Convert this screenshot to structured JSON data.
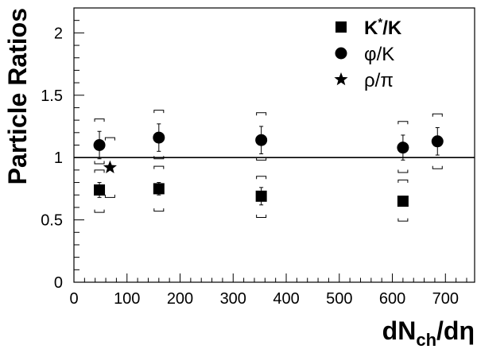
{
  "chart_data": {
    "type": "scatter",
    "xlabel": {
      "main": "dN",
      "sub": "ch",
      "tail": "/dη"
    },
    "ylabel": "Particle Ratios",
    "xlim": [
      0,
      755
    ],
    "ylim": [
      0,
      2.2
    ],
    "xticks": [
      0,
      100,
      200,
      300,
      400,
      500,
      600,
      700
    ],
    "yticks": [
      0,
      0.5,
      1,
      1.5,
      2
    ],
    "ytick_labels": [
      "0",
      "0.5",
      "1",
      "1.5",
      "2"
    ],
    "reference_line": 1.0,
    "legend_placement": "top-right",
    "series": [
      {
        "name": "K*/K",
        "label_main": "K",
        "label_sup": "*",
        "label_tail": "/K",
        "marker": "square",
        "points": [
          {
            "x": 48,
            "y": 0.74,
            "stat": 0.06,
            "sys_lo": 0.56,
            "sys_hi": 0.9
          },
          {
            "x": 160,
            "y": 0.75,
            "stat": 0.05,
            "sys_lo": 0.57,
            "sys_hi": 0.93
          },
          {
            "x": 353,
            "y": 0.69,
            "stat": 0.07,
            "sys_lo": 0.52,
            "sys_hi": 0.85
          },
          {
            "x": 620,
            "y": 0.65,
            "stat": 0.04,
            "sys_lo": 0.49,
            "sys_hi": 0.82
          }
        ]
      },
      {
        "name": "φ/K",
        "label_main": "φ/K",
        "marker": "circle",
        "points": [
          {
            "x": 48,
            "y": 1.1,
            "stat": 0.11,
            "sys_lo": 0.95,
            "sys_hi": 1.31
          },
          {
            "x": 160,
            "y": 1.16,
            "stat": 0.11,
            "sys_lo": 0.99,
            "sys_hi": 1.38
          },
          {
            "x": 353,
            "y": 1.14,
            "stat": 0.11,
            "sys_lo": 0.98,
            "sys_hi": 1.36
          },
          {
            "x": 620,
            "y": 1.08,
            "stat": 0.1,
            "sys_lo": 0.88,
            "sys_hi": 1.29
          },
          {
            "x": 685,
            "y": 1.13,
            "stat": 0.11,
            "sys_lo": 0.91,
            "sys_hi": 1.35
          }
        ]
      },
      {
        "name": "ρ/π",
        "label_main": "ρ/π",
        "marker": "star",
        "points": [
          {
            "x": 68,
            "y": 0.92,
            "stat": 0,
            "sys_lo": 0.68,
            "sys_hi": 1.16
          }
        ]
      }
    ]
  }
}
